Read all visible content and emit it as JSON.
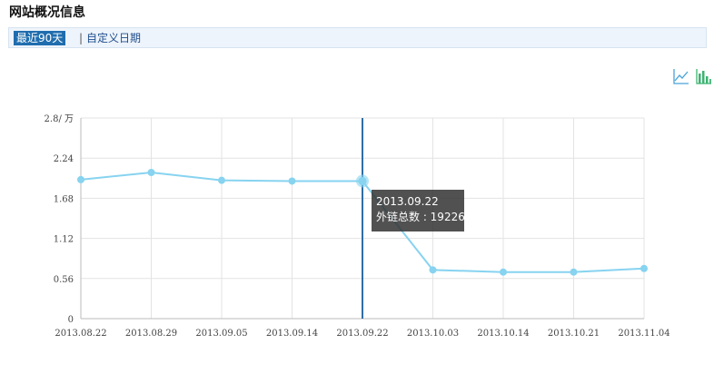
{
  "page_title": "网站概况信息",
  "range_bar": {
    "active_label": "最近90天",
    "separator": "|",
    "custom_label": "自定义日期"
  },
  "toolbar": {
    "line_icon": "line-chart-icon",
    "bar_icon": "bar-chart-icon"
  },
  "colors": {
    "series": "#87d3f0",
    "crosshair": "#2f6ea6",
    "grid": "#e3e3e3",
    "bar_icon": "#3cb371",
    "line_icon": "#4aa3d8"
  },
  "chart_data": {
    "type": "line",
    "y_axis_labels": [
      "0",
      "0.56",
      "1.12",
      "1.68",
      "2.24",
      "2.8/ 万"
    ],
    "ylim": [
      0,
      2.8
    ],
    "categories": [
      "2013.08.22",
      "2013.08.29",
      "2013.09.05",
      "2013.09.14",
      "2013.09.22",
      "2013.10.03",
      "2013.10.14",
      "2013.10.21",
      "2013.11.04"
    ],
    "series": [
      {
        "values": [
          1.94,
          2.04,
          1.93,
          1.92,
          1.92,
          0.68,
          0.65,
          0.65,
          0.7
        ]
      }
    ],
    "grid": true,
    "highlight_index": 4,
    "tooltip": {
      "date": "2013.09.22",
      "label": "外链总数 : 19226"
    }
  }
}
